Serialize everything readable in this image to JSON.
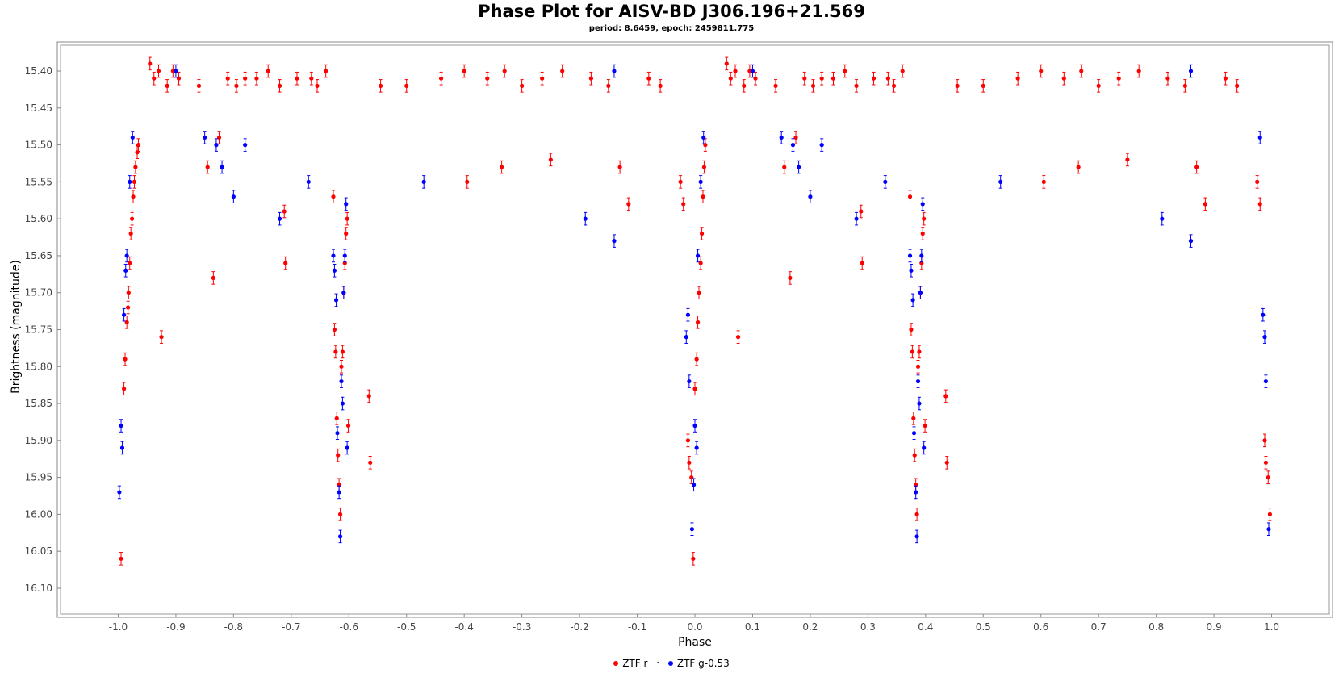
{
  "chart_data": {
    "type": "scatter",
    "title": "Phase Plot for AISV-BD J306.196+21.569",
    "subtitle": "period: 8.6459, epoch: 2459811.775",
    "xlabel": "Phase",
    "ylabel": "Brightness (magnitude)",
    "xlim": [
      -1.1,
      1.1
    ],
    "ylim": [
      16.135,
      15.365
    ],
    "y_inverted": true,
    "x_ticks": [
      "-1.0",
      "-0.9",
      "-0.8",
      "-0.7",
      "-0.6",
      "-0.5",
      "-0.4",
      "-0.3",
      "-0.2",
      "-0.1",
      "0.0",
      "0.1",
      "0.2",
      "0.3",
      "0.4",
      "0.5",
      "0.6",
      "0.7",
      "0.8",
      "0.9",
      "1.0"
    ],
    "y_ticks": [
      "15.40",
      "15.45",
      "15.50",
      "15.55",
      "15.60",
      "15.65",
      "15.70",
      "15.75",
      "15.80",
      "15.85",
      "15.90",
      "15.95",
      "16.00",
      "16.05",
      "16.10"
    ],
    "grid": false,
    "legend_position": "bottom-center",
    "error_bars": true,
    "series": [
      {
        "name": "ZTF r",
        "color": "#ff0000",
        "points": [
          [
            -0.995,
            16.06
          ],
          [
            -0.99,
            15.83
          ],
          [
            -0.988,
            15.79
          ],
          [
            -0.985,
            15.74
          ],
          [
            -0.983,
            15.72
          ],
          [
            -0.982,
            15.7
          ],
          [
            -0.98,
            15.66
          ],
          [
            -0.978,
            15.62
          ],
          [
            -0.976,
            15.6
          ],
          [
            -0.974,
            15.57
          ],
          [
            -0.972,
            15.55
          ],
          [
            -0.97,
            15.53
          ],
          [
            -0.967,
            15.51
          ],
          [
            -0.965,
            15.5
          ],
          [
            -0.945,
            15.39
          ],
          [
            -0.938,
            15.41
          ],
          [
            -0.93,
            15.4
          ],
          [
            -0.925,
            15.76
          ],
          [
            -0.915,
            15.42
          ],
          [
            -0.905,
            15.4
          ],
          [
            -0.895,
            15.41
          ],
          [
            -0.86,
            15.42
          ],
          [
            -0.845,
            15.53
          ],
          [
            -0.835,
            15.68
          ],
          [
            -0.825,
            15.49
          ],
          [
            -0.81,
            15.41
          ],
          [
            -0.795,
            15.42
          ],
          [
            -0.78,
            15.41
          ],
          [
            -0.76,
            15.41
          ],
          [
            -0.74,
            15.4
          ],
          [
            -0.72,
            15.42
          ],
          [
            -0.712,
            15.59
          ],
          [
            -0.71,
            15.66
          ],
          [
            -0.69,
            15.41
          ],
          [
            -0.665,
            15.41
          ],
          [
            -0.655,
            15.42
          ],
          [
            -0.64,
            15.4
          ],
          [
            -0.627,
            15.57
          ],
          [
            -0.625,
            15.75
          ],
          [
            -0.623,
            15.78
          ],
          [
            -0.621,
            15.87
          ],
          [
            -0.619,
            15.92
          ],
          [
            -0.617,
            15.96
          ],
          [
            -0.615,
            16.0
          ],
          [
            -0.613,
            15.8
          ],
          [
            -0.611,
            15.78
          ],
          [
            -0.609,
            15.7
          ],
          [
            -0.607,
            15.66
          ],
          [
            -0.605,
            15.62
          ],
          [
            -0.603,
            15.6
          ],
          [
            -0.601,
            15.88
          ],
          [
            -0.565,
            15.84
          ],
          [
            -0.563,
            15.93
          ],
          [
            -0.545,
            15.42
          ],
          [
            -0.5,
            15.42
          ],
          [
            -0.44,
            15.41
          ],
          [
            -0.4,
            15.4
          ],
          [
            -0.395,
            15.55
          ],
          [
            -0.36,
            15.41
          ],
          [
            -0.335,
            15.53
          ],
          [
            -0.33,
            15.4
          ],
          [
            -0.3,
            15.42
          ],
          [
            -0.265,
            15.41
          ],
          [
            -0.25,
            15.52
          ],
          [
            -0.23,
            15.4
          ],
          [
            -0.18,
            15.41
          ],
          [
            -0.15,
            15.42
          ],
          [
            -0.13,
            15.53
          ],
          [
            -0.115,
            15.58
          ],
          [
            -0.08,
            15.41
          ],
          [
            -0.06,
            15.42
          ],
          [
            -0.025,
            15.55
          ],
          [
            -0.02,
            15.58
          ],
          [
            -0.012,
            15.9
          ],
          [
            -0.01,
            15.93
          ],
          [
            -0.006,
            15.95
          ],
          [
            -0.003,
            16.06
          ],
          [
            0.0,
            15.83
          ],
          [
            0.003,
            15.79
          ],
          [
            0.005,
            15.74
          ],
          [
            0.007,
            15.7
          ],
          [
            0.01,
            15.66
          ],
          [
            0.012,
            15.62
          ],
          [
            0.014,
            15.57
          ],
          [
            0.016,
            15.53
          ],
          [
            0.018,
            15.5
          ],
          [
            0.055,
            15.39
          ],
          [
            0.062,
            15.41
          ],
          [
            0.07,
            15.4
          ],
          [
            0.075,
            15.76
          ],
          [
            0.085,
            15.42
          ],
          [
            0.095,
            15.4
          ],
          [
            0.105,
            15.41
          ],
          [
            0.14,
            15.42
          ],
          [
            0.155,
            15.53
          ],
          [
            0.165,
            15.68
          ],
          [
            0.175,
            15.49
          ],
          [
            0.19,
            15.41
          ],
          [
            0.205,
            15.42
          ],
          [
            0.22,
            15.41
          ],
          [
            0.24,
            15.41
          ],
          [
            0.26,
            15.4
          ],
          [
            0.28,
            15.42
          ],
          [
            0.288,
            15.59
          ],
          [
            0.29,
            15.66
          ],
          [
            0.31,
            15.41
          ],
          [
            0.335,
            15.41
          ],
          [
            0.345,
            15.42
          ],
          [
            0.36,
            15.4
          ],
          [
            0.373,
            15.57
          ],
          [
            0.375,
            15.75
          ],
          [
            0.377,
            15.78
          ],
          [
            0.379,
            15.87
          ],
          [
            0.381,
            15.92
          ],
          [
            0.383,
            15.96
          ],
          [
            0.385,
            16.0
          ],
          [
            0.387,
            15.8
          ],
          [
            0.389,
            15.78
          ],
          [
            0.391,
            15.7
          ],
          [
            0.393,
            15.66
          ],
          [
            0.395,
            15.62
          ],
          [
            0.397,
            15.6
          ],
          [
            0.399,
            15.88
          ],
          [
            0.435,
            15.84
          ],
          [
            0.437,
            15.93
          ],
          [
            0.455,
            15.42
          ],
          [
            0.5,
            15.42
          ],
          [
            0.56,
            15.41
          ],
          [
            0.6,
            15.4
          ],
          [
            0.605,
            15.55
          ],
          [
            0.64,
            15.41
          ],
          [
            0.665,
            15.53
          ],
          [
            0.67,
            15.4
          ],
          [
            0.7,
            15.42
          ],
          [
            0.735,
            15.41
          ],
          [
            0.75,
            15.52
          ],
          [
            0.77,
            15.4
          ],
          [
            0.82,
            15.41
          ],
          [
            0.85,
            15.42
          ],
          [
            0.87,
            15.53
          ],
          [
            0.885,
            15.58
          ],
          [
            0.92,
            15.41
          ],
          [
            0.94,
            15.42
          ],
          [
            0.975,
            15.55
          ],
          [
            0.98,
            15.58
          ],
          [
            0.988,
            15.9
          ],
          [
            0.99,
            15.93
          ],
          [
            0.994,
            15.95
          ],
          [
            0.997,
            16.0
          ]
        ]
      },
      {
        "name": "ZTF g-0.53",
        "color": "#0000ff",
        "points": [
          [
            -0.998,
            15.97
          ],
          [
            -0.995,
            15.88
          ],
          [
            -0.993,
            15.91
          ],
          [
            -0.99,
            15.73
          ],
          [
            -0.987,
            15.67
          ],
          [
            -0.985,
            15.65
          ],
          [
            -0.98,
            15.55
          ],
          [
            -0.975,
            15.49
          ],
          [
            -0.9,
            15.4
          ],
          [
            -0.85,
            15.49
          ],
          [
            -0.83,
            15.5
          ],
          [
            -0.82,
            15.53
          ],
          [
            -0.8,
            15.57
          ],
          [
            -0.78,
            15.5
          ],
          [
            -0.72,
            15.6
          ],
          [
            -0.67,
            15.55
          ],
          [
            -0.627,
            15.65
          ],
          [
            -0.625,
            15.67
          ],
          [
            -0.622,
            15.71
          ],
          [
            -0.62,
            15.89
          ],
          [
            -0.617,
            15.97
          ],
          [
            -0.615,
            16.03
          ],
          [
            -0.613,
            15.82
          ],
          [
            -0.611,
            15.85
          ],
          [
            -0.609,
            15.7
          ],
          [
            -0.607,
            15.65
          ],
          [
            -0.605,
            15.58
          ],
          [
            -0.603,
            15.91
          ],
          [
            -0.47,
            15.55
          ],
          [
            -0.19,
            15.6
          ],
          [
            -0.14,
            15.63
          ],
          [
            -0.14,
            15.4
          ],
          [
            -0.015,
            15.76
          ],
          [
            -0.012,
            15.73
          ],
          [
            -0.01,
            15.82
          ],
          [
            -0.005,
            16.02
          ],
          [
            -0.002,
            15.96
          ],
          [
            0.0,
            15.88
          ],
          [
            0.003,
            15.91
          ],
          [
            0.005,
            15.65
          ],
          [
            0.01,
            15.55
          ],
          [
            0.015,
            15.49
          ],
          [
            0.1,
            15.4
          ],
          [
            0.15,
            15.49
          ],
          [
            0.17,
            15.5
          ],
          [
            0.18,
            15.53
          ],
          [
            0.2,
            15.57
          ],
          [
            0.22,
            15.5
          ],
          [
            0.28,
            15.6
          ],
          [
            0.33,
            15.55
          ],
          [
            0.373,
            15.65
          ],
          [
            0.375,
            15.67
          ],
          [
            0.378,
            15.71
          ],
          [
            0.38,
            15.89
          ],
          [
            0.383,
            15.97
          ],
          [
            0.385,
            16.03
          ],
          [
            0.387,
            15.82
          ],
          [
            0.389,
            15.85
          ],
          [
            0.391,
            15.7
          ],
          [
            0.393,
            15.65
          ],
          [
            0.395,
            15.58
          ],
          [
            0.397,
            15.91
          ],
          [
            0.53,
            15.55
          ],
          [
            0.81,
            15.6
          ],
          [
            0.86,
            15.63
          ],
          [
            0.86,
            15.4
          ],
          [
            0.985,
            15.73
          ],
          [
            0.988,
            15.76
          ],
          [
            0.99,
            15.82
          ],
          [
            0.995,
            16.02
          ],
          [
            0.98,
            15.49
          ]
        ]
      }
    ]
  }
}
